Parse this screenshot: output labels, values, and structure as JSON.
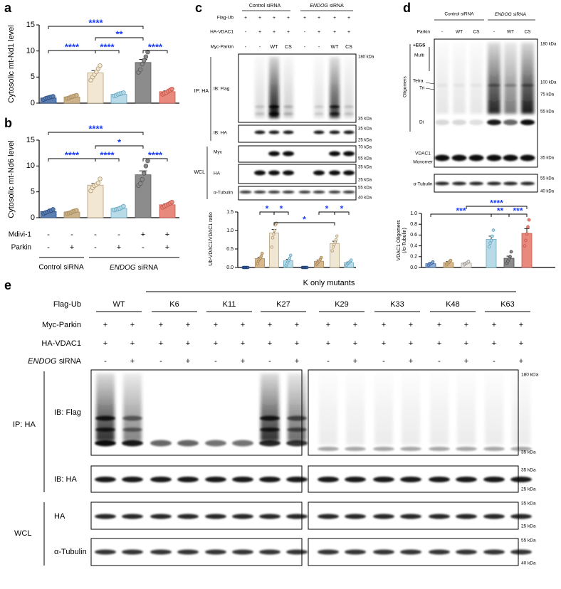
{
  "panel_labels": [
    "a",
    "b",
    "c",
    "d",
    "e"
  ],
  "chart_data": [
    {
      "type": "bar",
      "y_label": "Cytosolic mt-Nd1 level",
      "ylim": [
        0,
        15
      ],
      "yticks": [
        0,
        5,
        10,
        15
      ],
      "colors": [
        "#5b7fb0",
        "#cdb38c",
        "#f1e7d3",
        "#b9dbe8",
        "#8c8c8c",
        "#e8897e"
      ],
      "edge_colors": [
        "#2e4f86",
        "#a88a5c",
        "#b6a07a",
        "#6aaac3",
        "#5a5a5a",
        "#c9574b"
      ],
      "values": [
        1.0,
        1.2,
        5.8,
        1.7,
        7.8,
        2.2
      ],
      "errors": [
        0.1,
        0.1,
        0.45,
        0.1,
        0.6,
        0.15
      ],
      "points": [
        [
          0.7,
          0.9,
          1.0,
          1.1,
          1.2,
          1.3
        ],
        [
          0.9,
          1.0,
          1.2,
          1.3,
          1.4,
          1.5
        ],
        [
          4.4,
          5.0,
          5.5,
          6.0,
          6.6,
          7.2
        ],
        [
          1.4,
          1.5,
          1.7,
          1.8,
          1.9,
          2.0
        ],
        [
          5.9,
          6.4,
          7.5,
          8.2,
          8.9,
          9.8
        ],
        [
          1.7,
          1.9,
          2.0,
          2.3,
          2.5,
          2.7
        ]
      ],
      "annotations": [
        "****",
        "**",
        "****",
        "****",
        "****"
      ],
      "annotation_color": "#1a3cff"
    },
    {
      "type": "bar",
      "y_label": "Cytosolic mt-Nd6 level",
      "ylim": [
        0,
        15
      ],
      "yticks": [
        0,
        5,
        10,
        15
      ],
      "colors": [
        "#5b7fb0",
        "#cdb38c",
        "#f1e7d3",
        "#b9dbe8",
        "#8c8c8c",
        "#e8897e"
      ],
      "edge_colors": [
        "#2e4f86",
        "#a88a5c",
        "#b6a07a",
        "#6aaac3",
        "#5a5a5a",
        "#c9574b"
      ],
      "values": [
        1.2,
        1.1,
        6.3,
        1.8,
        8.3,
        2.5
      ],
      "errors": [
        0.12,
        0.1,
        0.3,
        0.1,
        0.75,
        0.15
      ],
      "points": [
        [
          0.8,
          1.0,
          1.1,
          1.3,
          1.4,
          1.6
        ],
        [
          0.8,
          0.9,
          1.0,
          1.2,
          1.3,
          1.4
        ],
        [
          5.2,
          5.8,
          6.2,
          6.4,
          6.7,
          7.5
        ],
        [
          1.5,
          1.6,
          1.7,
          1.8,
          2.0,
          2.2
        ],
        [
          6.2,
          6.6,
          7.4,
          8.6,
          10.0,
          11.0
        ],
        [
          2.0,
          2.2,
          2.4,
          2.6,
          2.8,
          3.0
        ]
      ],
      "annotations": [
        "****",
        "*",
        "****",
        "****",
        "****"
      ],
      "annotation_color": "#1a3cff",
      "conditions": [
        {
          "name": "Mdivi-1",
          "marks": [
            "-",
            "-",
            "-",
            "-",
            "+",
            "+"
          ]
        },
        {
          "name": "Parkin",
          "marks": [
            "-",
            "+",
            "-",
            "+",
            "-",
            "+"
          ]
        }
      ],
      "groups": [
        {
          "label": "Control siRNA"
        },
        {
          "gene": "ENDOG",
          "label": "siRNA"
        }
      ]
    },
    {
      "type": "bar",
      "y_label": "Ub-VDAC1/VDAC1 ratio",
      "ylim": [
        0,
        1.5
      ],
      "yticks": [
        {
          "value": 0,
          "label": "0.0"
        },
        {
          "value": 0.5,
          "label": "0.5"
        },
        {
          "value": 1,
          "label": "1.0"
        },
        {
          "value": 1.5,
          "label": "1.5"
        }
      ],
      "colors": [
        "#3d63a0",
        "#d7b98d",
        "#efe6d4",
        "#b9dbe8"
      ],
      "edge_colors": [
        "#23427a",
        "#a88a5c",
        "#b6a07a",
        "#6aaac3"
      ],
      "values": [
        0.0,
        0.24,
        0.93,
        0.18,
        0.0,
        0.17,
        0.65,
        0.13
      ],
      "errors": [
        0,
        0.04,
        0.1,
        0.04,
        0,
        0.03,
        0.06,
        0.02
      ],
      "points": [
        [
          0,
          0,
          0,
          0,
          0,
          0
        ],
        [
          0.1,
          0.18,
          0.22,
          0.26,
          0.3,
          0.38
        ],
        [
          0.55,
          0.8,
          0.9,
          1.0,
          1.15,
          1.2
        ],
        [
          0.05,
          0.1,
          0.15,
          0.2,
          0.25,
          0.33
        ],
        [
          0,
          0,
          0,
          0,
          0,
          0
        ],
        [
          0.08,
          0.12,
          0.15,
          0.18,
          0.22,
          0.27
        ],
        [
          0.45,
          0.55,
          0.62,
          0.68,
          0.75,
          0.85
        ],
        [
          0.06,
          0.1,
          0.12,
          0.14,
          0.16,
          0.2
        ]
      ],
      "annotations": [
        "*",
        "*",
        "*",
        "*",
        "*"
      ],
      "annotation_color": "#1a3cff"
    },
    {
      "type": "bar",
      "y_label": [
        "VDAC1 Oligomers",
        "(/α-Tubulin)"
      ],
      "ylim": [
        0,
        1
      ],
      "yticks": [
        {
          "value": 0,
          "label": "0.0"
        },
        0.2,
        0.4,
        0.6,
        0.8,
        {
          "value": 1,
          "label": "1.0"
        }
      ],
      "colors": [
        "#8fb0d8",
        "#d7b98d",
        "#f1ece3",
        "#b9dbe8",
        "#8c8c8c",
        "#e8897e"
      ],
      "edge_colors": [
        "#3d63a0",
        "#a88a5c",
        "#9a9a9a",
        "#6aaac3",
        "#4a4a4a",
        "#c9574b"
      ],
      "values": [
        0.07,
        0.09,
        0.08,
        0.52,
        0.17,
        0.63
      ],
      "errors": [
        0.02,
        0.02,
        0.01,
        0.06,
        0.04,
        0.09
      ],
      "points": [
        [
          0.04,
          0.06,
          0.07,
          0.08,
          0.1
        ],
        [
          0.05,
          0.07,
          0.09,
          0.11,
          0.13
        ],
        [
          0.05,
          0.07,
          0.08,
          0.09,
          0.11
        ],
        [
          0.38,
          0.45,
          0.5,
          0.58,
          0.69
        ],
        [
          0.08,
          0.12,
          0.16,
          0.2,
          0.29
        ],
        [
          0.4,
          0.5,
          0.62,
          0.75,
          0.88
        ]
      ],
      "annotations": [
        "****",
        "***",
        "**",
        "***"
      ],
      "annotation_color": "#1a3cff"
    }
  ],
  "blot_c": {
    "groups": [
      {
        "label": "Control siRNA"
      },
      {
        "gene": "ENDOG",
        "label": "siRNA"
      }
    ],
    "rows": [
      {
        "name": "Flag-Ub",
        "marks": [
          "+",
          "+",
          "+",
          "+",
          "+",
          "+",
          "+",
          "+"
        ]
      },
      {
        "name": "HA-VDAC1",
        "marks": [
          "-",
          "+",
          "+",
          "+",
          "-",
          "+",
          "+",
          "+"
        ]
      },
      {
        "name": "Myc-Parkin",
        "marks": [
          "-",
          "-",
          "WT",
          "CS",
          "-",
          "-",
          "WT",
          "CS"
        ]
      }
    ],
    "sections": [
      {
        "label": "IP: HA",
        "panels": [
          {
            "label": "IB: Flag"
          },
          {
            "label": "IB: HA"
          }
        ]
      },
      {
        "label": "WCL",
        "panels": [
          {
            "label": "Myc"
          },
          {
            "label": "HA"
          },
          {
            "label": "α-Tubulin"
          }
        ]
      }
    ],
    "markers": [
      "180 kDa",
      "35 kDa",
      "35 kDa",
      "25 kDa",
      "70 kDa",
      "55 kDa",
      "35 kDa",
      "25 kDa",
      "55 kDa",
      "40 kDa"
    ]
  },
  "blot_d": {
    "groups": [
      {
        "label": "Control siRNA"
      },
      {
        "gene": "ENDOG",
        "label": "siRNA"
      }
    ],
    "rows": [
      {
        "name": "Parkin",
        "marks": [
          "-",
          "WT",
          "CS",
          "-",
          "WT",
          "CS"
        ]
      }
    ],
    "treatment": "+EGS",
    "bands": [
      "Multi",
      "Tetra",
      "Tri",
      "Di"
    ],
    "oligomers": "Oligomers",
    "monomer": [
      "VDAC1",
      "Monomer"
    ],
    "loading": "α-Tubulin",
    "markers": [
      "180 kDa",
      "100 kDa",
      "75 kDa",
      "55 kDa",
      "35 kDa",
      "55 kDa",
      "40 kDa"
    ]
  },
  "blot_e": {
    "header": "K only mutants",
    "rows": [
      {
        "name": "Flag-Ub",
        "marks": [
          "WT",
          "K6",
          "K11",
          "K27",
          "K29",
          "K33",
          "K48",
          "K63"
        ]
      },
      {
        "name": "Myc-Parkin",
        "marks": [
          "+",
          "+",
          "+",
          "+",
          "+",
          "+",
          "+",
          "+",
          "+",
          "+",
          "+",
          "+",
          "+",
          "+",
          "+",
          "+"
        ]
      },
      {
        "name": "HA-VDAC1",
        "marks": [
          "+",
          "+",
          "+",
          "+",
          "+",
          "+",
          "+",
          "+",
          "+",
          "+",
          "+",
          "+",
          "+",
          "+",
          "+",
          "+"
        ]
      },
      {
        "gene": "ENDOG",
        "label": "siRNA",
        "marks": [
          "-",
          "+",
          "-",
          "+",
          "-",
          "+",
          "-",
          "+",
          "-",
          "+",
          "-",
          "+",
          "-",
          "+",
          "-",
          "+"
        ]
      }
    ],
    "sections": [
      {
        "label": "IP: HA",
        "panels": [
          {
            "label": "IB: Flag"
          },
          {
            "label": "IB: HA"
          }
        ]
      },
      {
        "label": "WCL",
        "panels": [
          {
            "label": "HA"
          },
          {
            "label": "α-Tubulin"
          }
        ]
      }
    ],
    "markers": [
      "180 kDa",
      "35 kDa",
      "35 kDa",
      "25 kDa",
      "35 kDa",
      "25 kDa",
      "55 kDa",
      "40 kDa"
    ]
  }
}
